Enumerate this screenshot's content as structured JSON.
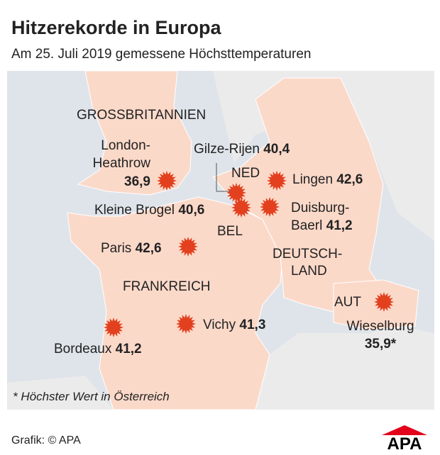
{
  "header": {
    "title": "Hitzerekorde in Europa",
    "subtitle": "Am 25. Juli 2019 gemessene Höchsttemperaturen"
  },
  "countries": [
    {
      "lines": [
        "GROSSBRITANNIEN"
      ]
    },
    {
      "lines": [
        "NED"
      ]
    },
    {
      "lines": [
        "BEL"
      ]
    },
    {
      "lines": [
        "FRANKREICH"
      ]
    },
    {
      "lines": [
        "DEUTSCH-",
        "LAND"
      ]
    },
    {
      "lines": [
        "AUT"
      ]
    }
  ],
  "stations": [
    {
      "lines": [
        "London-",
        "Heathrow"
      ],
      "value": "36,9"
    },
    {
      "lines": [
        "Gilze-Rijen"
      ],
      "value": "40,4"
    },
    {
      "lines": [
        "Lingen"
      ],
      "value": "42,6"
    },
    {
      "lines": [
        "Kleine Brogel"
      ],
      "value": "40,6"
    },
    {
      "lines": [
        "Duisburg-",
        "Baerl"
      ],
      "value": "41,2"
    },
    {
      "lines": [
        "Paris"
      ],
      "value": "42,6"
    },
    {
      "lines": [
        "Vichy"
      ],
      "value": "41,3"
    },
    {
      "lines": [
        "Bordeaux"
      ],
      "value": "41,2"
    },
    {
      "lines": [
        "Wieselburg"
      ],
      "value": "35,9*"
    }
  ],
  "footnote": "* Höchster Wert in Österreich",
  "source": "Grafik: © APA",
  "logo": "APA"
}
